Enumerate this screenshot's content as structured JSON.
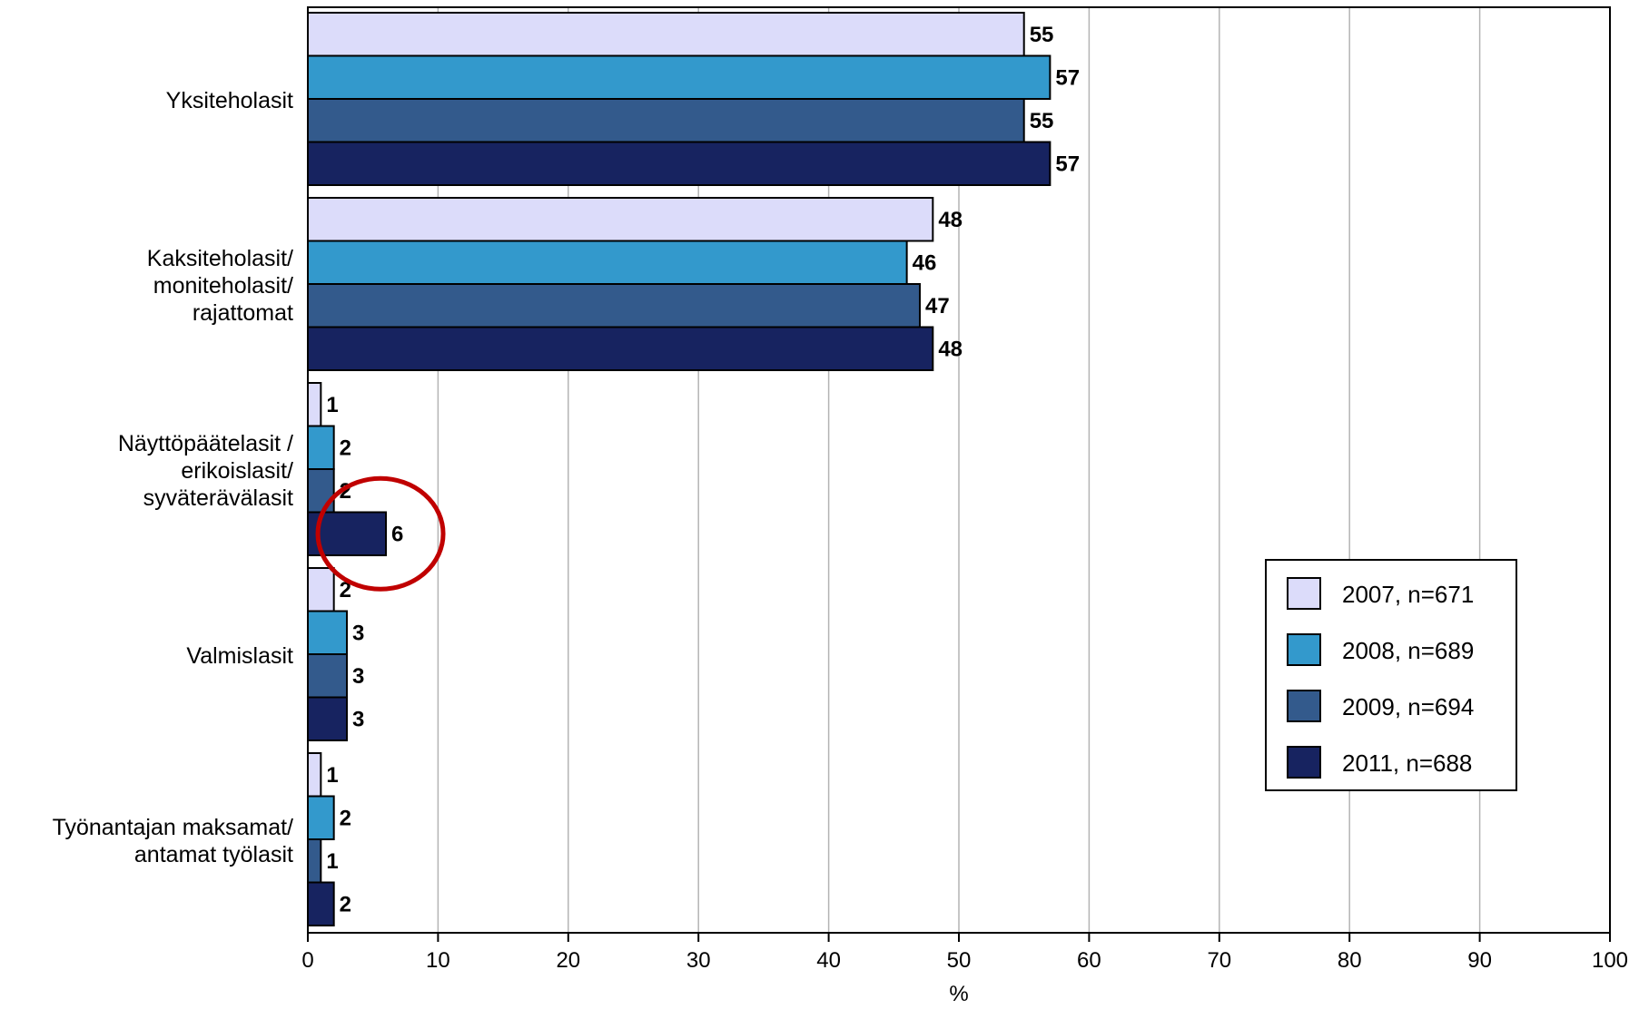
{
  "chart_data": {
    "type": "bar",
    "orientation": "horizontal",
    "categories": [
      [
        "Yksiteholasit"
      ],
      [
        "Kaksiteholasit/",
        "moniteholasit/",
        "rajattomat"
      ],
      [
        "Näyttöpäätelasit /",
        "erikoislasit/",
        "syväterävälasit"
      ],
      [
        "Valmislasit"
      ],
      [
        "Työnantajan maksamat/",
        "antamat työlasit"
      ]
    ],
    "series": [
      {
        "name": "2007, n=671",
        "color": "#dcdcfa",
        "values": [
          55,
          48,
          1,
          2,
          1
        ]
      },
      {
        "name": "2008, n=689",
        "color": "#3399cc",
        "values": [
          57,
          46,
          2,
          3,
          2
        ]
      },
      {
        "name": "2009, n=694",
        "color": "#335a8c",
        "values": [
          55,
          47,
          2,
          3,
          1
        ]
      },
      {
        "name": "2011, n=688",
        "color": "#172360",
        "values": [
          57,
          48,
          6,
          3,
          2
        ]
      }
    ],
    "xlabel": "%",
    "xlim": [
      0,
      100
    ],
    "xticks": [
      0,
      10,
      20,
      30,
      40,
      50,
      60,
      70,
      80,
      90,
      100
    ],
    "grid": true,
    "legend_position": "right",
    "annotation": {
      "type": "circle",
      "color": "#c00000",
      "category_index": 2,
      "series_index": 3
    }
  }
}
